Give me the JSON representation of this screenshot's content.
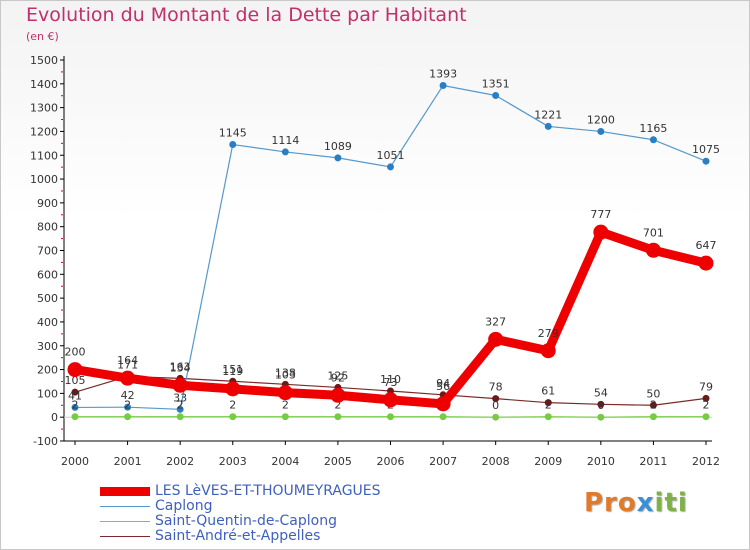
{
  "title": "Evolution du Montant de la Dette par Habitant",
  "unit": "(en €)",
  "logo": {
    "p1": "Pro",
    "p2": "x",
    "p3": "iti"
  },
  "chart_data": {
    "type": "line",
    "categories": [
      "2000",
      "2001",
      "2002",
      "2003",
      "2004",
      "2005",
      "2006",
      "2007",
      "2008",
      "2009",
      "2010",
      "2011",
      "2012"
    ],
    "ylim": [
      -100,
      1500
    ],
    "yticks": [
      -100,
      0,
      100,
      200,
      300,
      400,
      500,
      600,
      700,
      800,
      900,
      1000,
      1100,
      1200,
      1300,
      1400,
      1500
    ],
    "grid": false,
    "legend_position": "bottom-left",
    "series": [
      {
        "name": "Saint-André-et-Appelles",
        "color": "#7a2a2a",
        "values": [
          105,
          171,
          163,
          151,
          138,
          125,
          110,
          94,
          78,
          61,
          54,
          50,
          79
        ],
        "labels": [
          "105",
          "171",
          "163",
          "151",
          "138",
          "125",
          "110",
          "94",
          "78",
          "61",
          "54",
          "50",
          "79"
        ]
      },
      {
        "name": "Caplong",
        "color": "#5599cc",
        "values": [
          41,
          42,
          33,
          1145,
          1114,
          1089,
          1051,
          1393,
          1351,
          1221,
          1200,
          1165,
          1075
        ],
        "labels": [
          "41",
          "42",
          "33",
          "1145",
          "1114",
          "1089",
          "1051",
          "1393",
          "1351",
          "1221",
          "1200",
          "1165",
          "1075"
        ]
      },
      {
        "name": "Saint-Quentin-de-Caplong",
        "color": "#77cc44",
        "values": [
          2,
          2,
          2,
          2,
          2,
          2,
          2,
          2,
          0,
          2,
          0,
          2,
          2
        ],
        "labels": [
          "2",
          "2",
          "2",
          "2",
          "2",
          "2",
          "2",
          "2",
          "0",
          "2",
          "0",
          "2",
          "2"
        ]
      },
      {
        "name": "LES LèVES-ET-THOUMEYRAGUES",
        "color": "#ee0000",
        "values": [
          200,
          164,
          134,
          119,
          103,
          92,
          73,
          56,
          327,
          279,
          777,
          701,
          647
        ],
        "labels": [
          "200",
          "164",
          "134",
          "119",
          "103",
          "92",
          "73",
          "56",
          "327",
          "279",
          "777",
          "701",
          "647"
        ]
      }
    ]
  },
  "legend": [
    {
      "label": "LES LèVES-ET-THOUMEYRAGUES",
      "color": "#ee0000",
      "weight": 9
    },
    {
      "label": "Caplong",
      "color": "#5599cc",
      "weight": 1
    },
    {
      "label": "Saint-Quentin-de-Caplong",
      "color": "#77cc44",
      "weight": 1
    },
    {
      "label": "Saint-André-et-Appelles",
      "color": "#7a2a2a",
      "weight": 1
    }
  ]
}
